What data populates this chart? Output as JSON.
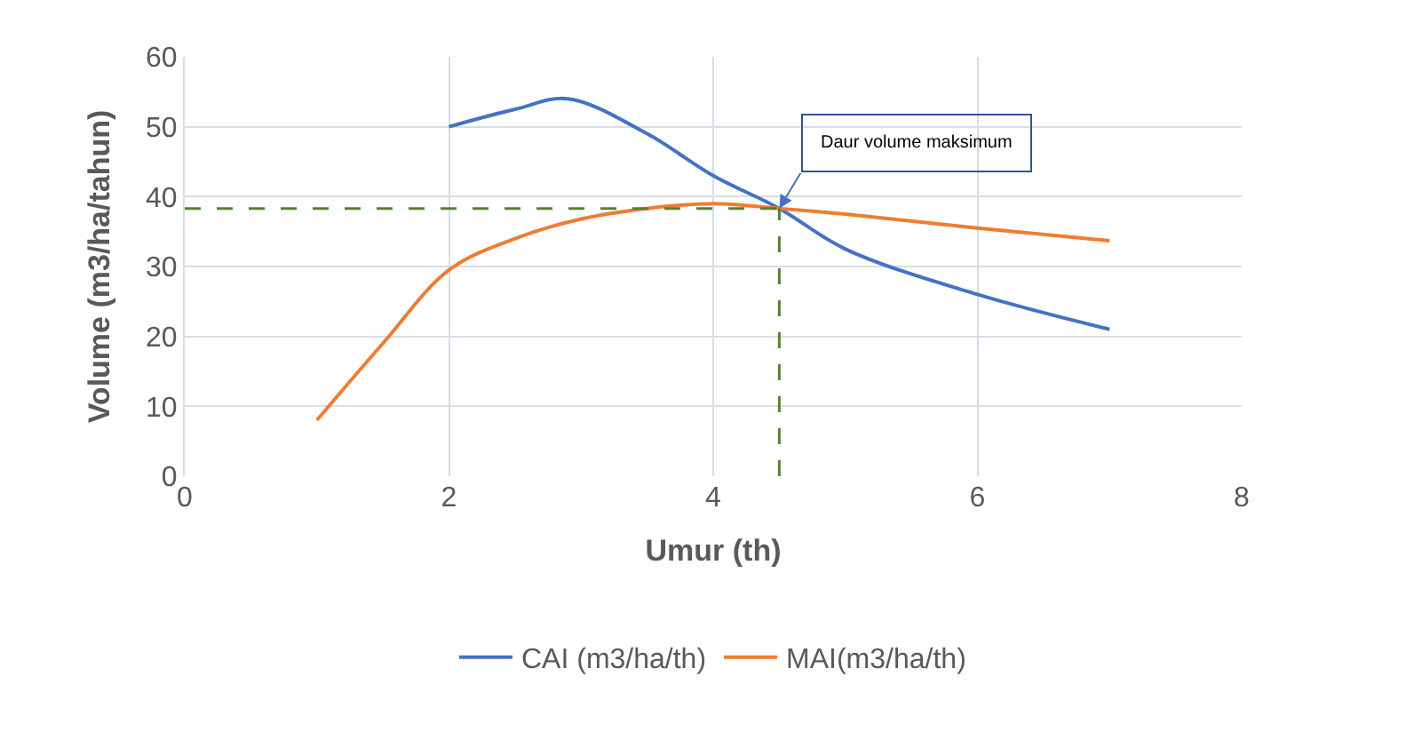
{
  "chart_data": {
    "type": "line",
    "xlabel": "Umur (th)",
    "ylabel": "Volume (m3/ha/tahun)",
    "xlim": [
      0,
      8
    ],
    "xticks": [
      0,
      2,
      4,
      6,
      8
    ],
    "ylim": [
      0,
      60
    ],
    "yticks": [
      0,
      10,
      20,
      30,
      40,
      50,
      60
    ],
    "grid": true,
    "legend": "bottom",
    "marker": "none",
    "line_style": "solid",
    "series": [
      {
        "name": "CAI (m3/ha/th)",
        "color": "#4472c4",
        "x": [
          2,
          2.5,
          2.9,
          3.5,
          4,
          4.5,
          5,
          6,
          7
        ],
        "values": [
          50,
          52.5,
          54,
          49,
          43,
          38.3,
          32.5,
          26,
          21
        ]
      },
      {
        "name": "MAI(m3/ha/th)",
        "color": "#ed7d31",
        "x": [
          1,
          1.5,
          2,
          2.5,
          3,
          3.5,
          4,
          4.5,
          5,
          6,
          7
        ],
        "values": [
          8,
          19,
          29.5,
          34,
          36.8,
          38.3,
          39,
          38.3,
          37.5,
          35.5,
          33.7
        ]
      }
    ],
    "ref_lines": [
      {
        "axis": "y",
        "value": 38.3,
        "label": null,
        "color": "#548235",
        "line_style": "dashed"
      },
      {
        "axis": "x",
        "value": 4.5,
        "label": null,
        "color": "#548235",
        "line_style": "dashed"
      }
    ],
    "annotations": [
      "Daur volume maksimum"
    ]
  }
}
